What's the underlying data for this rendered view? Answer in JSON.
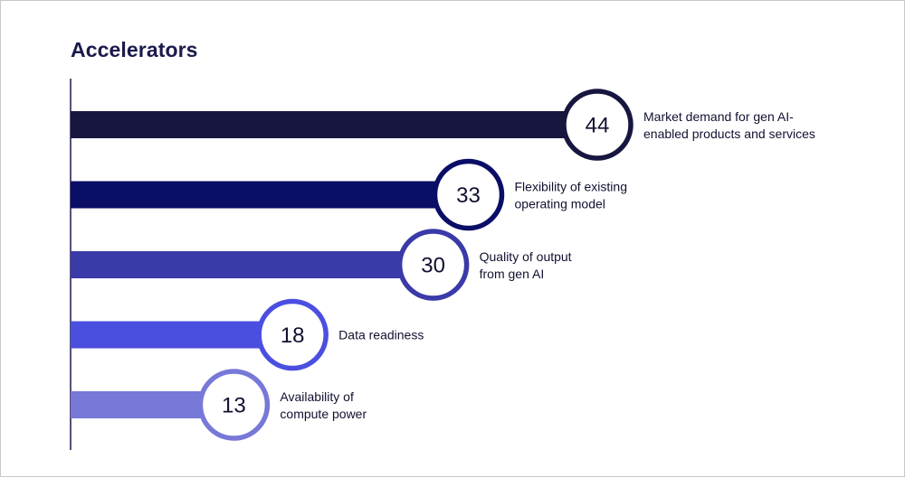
{
  "chart_data": {
    "type": "bar",
    "orientation": "horizontal",
    "title": "Accelerators",
    "categories": [
      [
        "Market demand for gen AI-",
        "enabled products and services"
      ],
      [
        "Flexibility of existing",
        "operating model"
      ],
      [
        "Quality of output",
        "from gen AI"
      ],
      [
        "Data readiness"
      ],
      [
        "Availability of",
        "compute power"
      ]
    ],
    "values": [
      44,
      33,
      30,
      18,
      13
    ],
    "colors": [
      "#17163f",
      "#0b0e66",
      "#3a3aa8",
      "#4b4fe0",
      "#7778d8"
    ],
    "xlim": [
      0,
      44
    ]
  }
}
